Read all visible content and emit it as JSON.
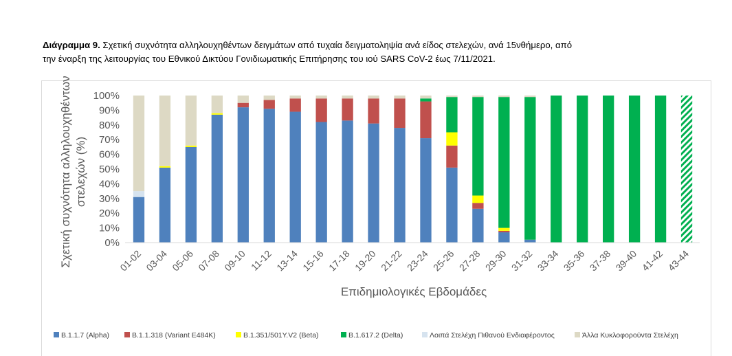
{
  "caption": {
    "label": "Διάγραμμα 9.",
    "line1": " Σχετική συχνότητα αλληλουχηθέντων δειγμάτων από τυχαία δειγματοληψία ανά είδος στελεχών, ανά 15νθήμερο, από",
    "line2": "την έναρξη της λειτουργίας του Εθνικού Δικτύου Γονιδιωματικής Επιτήρησης του ιού SARS CoV-2 έως 7/11/2021."
  },
  "chart_data": {
    "type": "bar",
    "stacked": true,
    "xlabel": "Επιδημιολογικές Εβδομάδες",
    "ylabel_lines": [
      "Σχετική συχνότητα αλληλουχηθέντων",
      "στελεχών (%)"
    ],
    "ylim": [
      0,
      100
    ],
    "yticks": [
      "0%",
      "10%",
      "20%",
      "30%",
      "40%",
      "50%",
      "60%",
      "70%",
      "80%",
      "90%",
      "100%"
    ],
    "grid": false,
    "legend_position": "bottom",
    "categories": [
      "01-02",
      "03-04",
      "05-06",
      "07-08",
      "09-10",
      "11-12",
      "13-14",
      "15-16",
      "17-18",
      "19-20",
      "21-22",
      "23-24",
      "25-26",
      "27-28",
      "29-30",
      "31-32",
      "33-34",
      "35-36",
      "37-38",
      "39-40",
      "41-42",
      "43-44"
    ],
    "hatched_category": "43-44",
    "series": [
      {
        "name": "B.1.1.7 (Alpha)",
        "color": "#4f81bd",
        "values": [
          31,
          51,
          65,
          87,
          92,
          91,
          89,
          82,
          83,
          81,
          78,
          71,
          51,
          23,
          7,
          2,
          0,
          0,
          0,
          0,
          0,
          0
        ]
      },
      {
        "name": "B.1.1.318 (Variant E484K)",
        "color": "#c0504d",
        "values": [
          0,
          0,
          0,
          0,
          3,
          6,
          9,
          16,
          15,
          17,
          20,
          25,
          15,
          4,
          1,
          0,
          0,
          0,
          0,
          0,
          0,
          0
        ]
      },
      {
        "name": "B.1.351/501Y.V2 (Beta)",
        "color": "#ffff00",
        "values": [
          0,
          1,
          1,
          1,
          0,
          0,
          0,
          0,
          0,
          0,
          0,
          0,
          9,
          5,
          2,
          0,
          0,
          0,
          0,
          0,
          0,
          0
        ]
      },
      {
        "name": "B.1.617.2 (Delta)",
        "color": "#00b050",
        "values": [
          0,
          0,
          0,
          0,
          0,
          0,
          0,
          0,
          0,
          0,
          0,
          2,
          24,
          67,
          89,
          97,
          100,
          100,
          100,
          100,
          100,
          100
        ]
      },
      {
        "name": "Λοιπά Στελέχη Πιθανού Ενδιαφέροντος",
        "color": "#d6e3ef",
        "values": [
          4,
          0,
          0,
          0,
          0,
          0,
          0,
          0,
          0,
          0,
          0,
          0,
          0,
          0,
          0,
          0,
          0,
          0,
          0,
          0,
          0,
          0
        ]
      },
      {
        "name": "Άλλα Κυκλοφορούντα Στελέχη",
        "color": "#ddd9c4",
        "values": [
          65,
          48,
          34,
          12,
          5,
          3,
          2,
          2,
          2,
          2,
          2,
          2,
          1,
          1,
          1,
          1,
          0,
          0,
          0,
          0,
          0,
          0
        ]
      }
    ]
  }
}
